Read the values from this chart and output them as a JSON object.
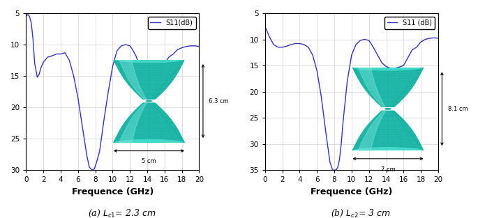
{
  "plot1": {
    "xlabel": "Frequence (GHz)",
    "xlim": [
      0,
      20
    ],
    "ylim": [
      -30,
      -5
    ],
    "yticks": [
      -5,
      -10,
      -15,
      -20,
      -25,
      -30
    ],
    "ytick_labels": [
      "5",
      "10",
      "15",
      "20",
      "25",
      "30"
    ],
    "xticks": [
      0,
      2,
      4,
      6,
      8,
      10,
      12,
      14,
      16,
      18,
      20
    ],
    "legend": "S11(dB)",
    "caption": "(a) $L_{c1}$= 2.3 cm",
    "annot_h": "6.3 cm",
    "annot_w": "5 cm",
    "line_color": "#3333BB",
    "freq": [
      0.0,
      0.2,
      0.4,
      0.6,
      0.8,
      1.0,
      1.3,
      1.5,
      1.7,
      2.0,
      2.5,
      3.0,
      3.5,
      4.0,
      4.5,
      5.0,
      5.5,
      6.0,
      6.5,
      7.0,
      7.3,
      7.6,
      7.9,
      8.2,
      8.5,
      9.0,
      9.5,
      10.0,
      10.5,
      11.0,
      11.5,
      12.0,
      12.3,
      12.7,
      13.0,
      13.5,
      14.0,
      14.5,
      15.0,
      15.3,
      15.7,
      16.0,
      16.5,
      17.0,
      17.5,
      18.0,
      18.5,
      19.0,
      19.5,
      20.0
    ],
    "s11": [
      -5.5,
      -5.2,
      -5.5,
      -6.5,
      -9.0,
      -13.0,
      -15.2,
      -14.8,
      -13.8,
      -12.8,
      -12.0,
      -11.8,
      -11.5,
      -11.5,
      -11.3,
      -12.5,
      -15.0,
      -18.5,
      -23.0,
      -27.5,
      -29.5,
      -30.2,
      -29.8,
      -28.5,
      -27.0,
      -22.0,
      -17.5,
      -13.5,
      -11.0,
      -10.2,
      -10.0,
      -10.2,
      -10.8,
      -11.8,
      -13.0,
      -14.5,
      -14.8,
      -14.5,
      -14.5,
      -14.3,
      -14.2,
      -13.0,
      -12.0,
      -11.5,
      -10.8,
      -10.5,
      -10.3,
      -10.2,
      -10.2,
      -10.3
    ]
  },
  "plot2": {
    "xlabel": "Frequence (GHz)",
    "xlim": [
      0,
      20
    ],
    "ylim": [
      -35,
      -5
    ],
    "yticks": [
      -5,
      -10,
      -15,
      -20,
      -25,
      -30,
      -35
    ],
    "ytick_labels": [
      "5",
      "10",
      "15",
      "20",
      "25",
      "30",
      "35"
    ],
    "xticks": [
      0,
      2,
      4,
      6,
      8,
      10,
      12,
      14,
      16,
      18,
      20
    ],
    "legend": "S11 (dB)",
    "caption": "(b) $L_{c2}$= 3 cm",
    "annot_h": "8.1 cm",
    "annot_w": "7 cm",
    "line_color": "#3333BB",
    "freq": [
      0.0,
      0.5,
      1.0,
      1.5,
      2.0,
      2.5,
      3.0,
      3.5,
      4.0,
      4.5,
      5.0,
      5.5,
      6.0,
      6.5,
      7.0,
      7.5,
      7.8,
      8.0,
      8.2,
      8.4,
      8.6,
      8.8,
      9.0,
      9.5,
      10.0,
      10.5,
      11.0,
      11.5,
      12.0,
      12.5,
      13.0,
      13.5,
      14.0,
      14.5,
      15.0,
      15.5,
      16.0,
      16.5,
      17.0,
      17.5,
      18.0,
      18.5,
      19.0,
      19.5,
      20.0
    ],
    "s11": [
      -7.5,
      -9.5,
      -11.0,
      -11.5,
      -11.5,
      -11.3,
      -11.0,
      -10.8,
      -10.8,
      -11.0,
      -11.5,
      -13.0,
      -16.0,
      -21.0,
      -27.5,
      -33.5,
      -35.3,
      -35.5,
      -35.3,
      -34.5,
      -33.0,
      -30.0,
      -26.0,
      -18.0,
      -13.0,
      -11.0,
      -10.2,
      -10.0,
      -10.2,
      -11.5,
      -13.0,
      -14.5,
      -15.2,
      -15.5,
      -15.5,
      -15.3,
      -15.0,
      -13.5,
      -12.0,
      -11.5,
      -10.5,
      -10.0,
      -9.8,
      -9.7,
      -9.8
    ]
  },
  "fig_background": "#ffffff",
  "grid_color": "#d0d0d0",
  "tick_label_size": 7.5,
  "axis_label_size": 9,
  "legend_fontsize": 7,
  "caption_fontsize": 9,
  "teal_dark": "#1aada0",
  "teal_mid": "#20b8aa",
  "teal_light": "#40d8c8",
  "teal_highlight": "#7ee8e0"
}
